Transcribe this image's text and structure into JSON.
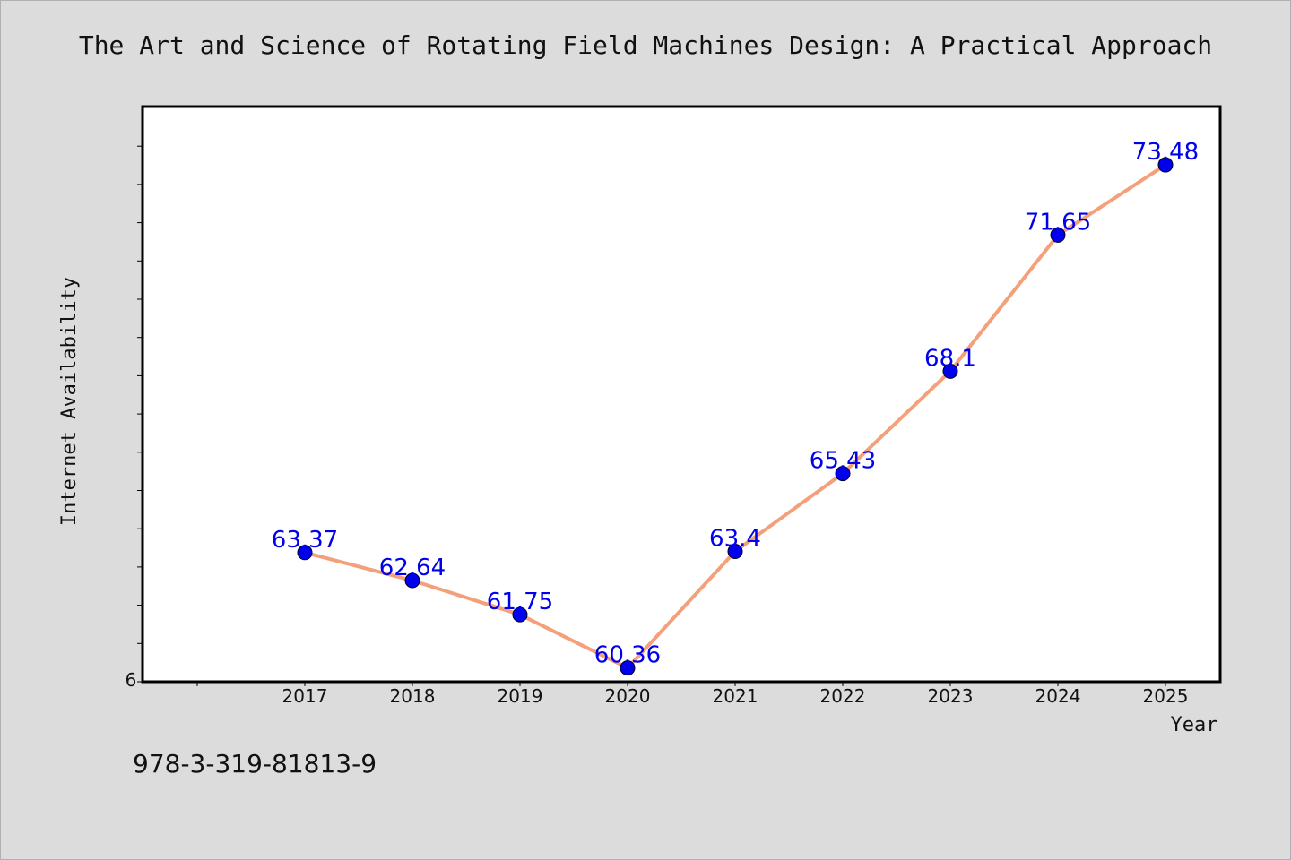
{
  "title": "The Art and Science of Rotating Field Machines Design: A Practical Approach",
  "footer_text": "978-3-319-81813-9",
  "chart_data": {
    "type": "line",
    "title": "The Art and Science of Rotating Field Machines Design: A Practical Approach",
    "xlabel": "Year",
    "ylabel": "Internet Availability",
    "categories": [
      "2017",
      "2018",
      "2019",
      "2020",
      "2021",
      "2022",
      "2023",
      "2024",
      "2025"
    ],
    "values": [
      63.37,
      62.64,
      61.75,
      60.36,
      63.4,
      65.43,
      68.1,
      71.65,
      73.48
    ],
    "data_labels": [
      "63.37",
      "62.64",
      "61.75",
      "60.36",
      "63.4",
      "65.43",
      "68.1",
      "71.65",
      "73.48"
    ],
    "y_tick_labels": [
      "6"
    ],
    "ylim": [
      60.0,
      75.0
    ],
    "grid": false,
    "line_color": "#f4a07a",
    "marker_color": "#0000ee",
    "label_color": "#0000ee"
  }
}
